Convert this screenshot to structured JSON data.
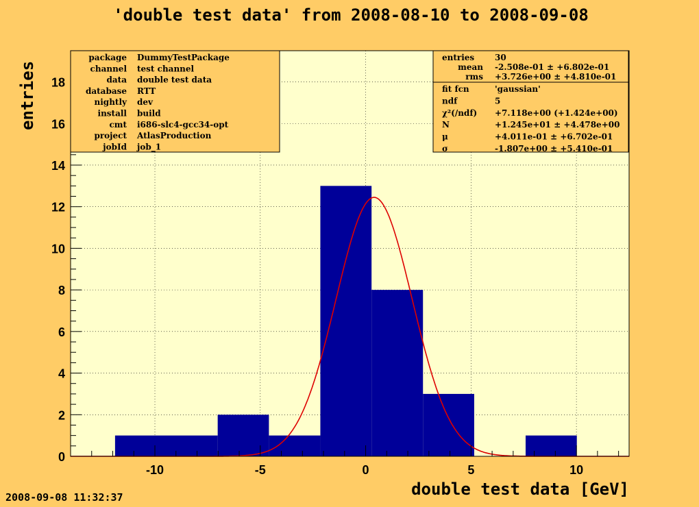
{
  "chart_data": {
    "type": "bar",
    "title": "'double test data' from 2008-08-10 to 2008-09-08",
    "xlabel": "double test data [GeV]",
    "ylabel": "entries",
    "xlim": [
      -14,
      12.5
    ],
    "ylim": [
      0,
      19.5
    ],
    "x_ticks": [
      -10,
      -5,
      0,
      5,
      10
    ],
    "y_ticks": [
      0,
      2,
      4,
      6,
      8,
      10,
      12,
      14,
      16,
      18
    ],
    "grid": true,
    "bins": [
      {
        "lo": -11.89,
        "hi": -7.02,
        "value": 1
      },
      {
        "lo": -7.02,
        "hi": -4.59,
        "value": 2
      },
      {
        "lo": -4.59,
        "hi": -2.15,
        "value": 1
      },
      {
        "lo": -2.15,
        "hi": 0.28,
        "value": 13
      },
      {
        "lo": 0.28,
        "hi": 2.72,
        "value": 8
      },
      {
        "lo": 2.72,
        "hi": 5.15,
        "value": 3
      },
      {
        "lo": 7.59,
        "hi": 10.02,
        "value": 1
      }
    ],
    "bar_color": "#000099",
    "fit": {
      "function": "gaussian",
      "N": 12.45,
      "mu": 0.4011,
      "sigma": 1.807,
      "color": "#dd0000"
    }
  },
  "info_left": [
    {
      "key": "package",
      "value": "DummyTestPackage"
    },
    {
      "key": "channel",
      "value": "test channel"
    },
    {
      "key": "data",
      "value": "double test data"
    },
    {
      "key": "database",
      "value": "RTT"
    },
    {
      "key": "nightly",
      "value": "dev"
    },
    {
      "key": "install",
      "value": "build"
    },
    {
      "key": "cmt",
      "value": "i686-slc4-gcc34-opt"
    },
    {
      "key": "project",
      "value": "AtlasProduction"
    },
    {
      "key": "jobId",
      "value": "job_1"
    }
  ],
  "stats": {
    "entries_label": "entries",
    "entries_value": "30",
    "mean_label": "mean",
    "mean_value": "-2.508e-01 ± +6.802e-01",
    "rms_label": "rms",
    "rms_value": "+3.726e+00 ± +4.810e-01"
  },
  "fit_box": [
    {
      "key": "fit fcn",
      "value": "'gaussian'"
    },
    {
      "key": "ndf",
      "value": "5"
    },
    {
      "key": "χ²(/ndf)",
      "value": "+7.118e+00  (+1.424e+00)"
    },
    {
      "key": "N",
      "value": "+1.245e+01 ± +4.478e+00"
    },
    {
      "key": "μ",
      "value": "+4.011e-01 ± +6.702e-01"
    },
    {
      "key": "σ",
      "value": "-1.807e+00 ± +5.410e-01"
    }
  ],
  "timestamp": "2008-09-08 11:32:37",
  "colors": {
    "canvas": "#ffcc66",
    "plot_area": "#ffffcc",
    "info_box": "#ffcc66"
  }
}
